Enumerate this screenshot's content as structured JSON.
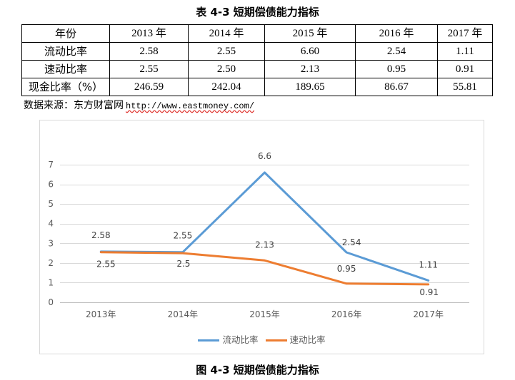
{
  "table": {
    "caption": "表 4-3 短期偿债能力指标",
    "headers": [
      "年份",
      "2013 年",
      "2014 年",
      "2015 年",
      "2016 年",
      "2017 年"
    ],
    "rows": [
      {
        "label": "流动比率",
        "values": [
          "2.58",
          "2.55",
          "6.60",
          "2.54",
          "1.11"
        ]
      },
      {
        "label": "速动比率",
        "values": [
          "2.55",
          "2.50",
          "2.13",
          "0.95",
          "0.91"
        ]
      },
      {
        "label": "现金比率（%）",
        "values": [
          "246.59",
          "242.04",
          "189.65",
          "86.67",
          "55.81"
        ]
      }
    ]
  },
  "source": {
    "label": "数据来源：东方财富网",
    "url": "http://www.eastmoney.com/"
  },
  "chart_data": {
    "type": "line",
    "title": "",
    "xlabel": "",
    "ylabel": "",
    "categories": [
      "2013年",
      "2014年",
      "2015年",
      "2016年",
      "2017年"
    ],
    "series": [
      {
        "name": "流动比率",
        "values": [
          2.58,
          2.55,
          6.6,
          2.54,
          1.11
        ],
        "color": "#5B9BD5"
      },
      {
        "name": "速动比率",
        "values": [
          2.55,
          2.5,
          2.13,
          0.95,
          0.91
        ],
        "color": "#ED7D31"
      }
    ],
    "y_ticks": [
      0,
      1,
      2,
      3,
      4,
      5,
      6,
      7
    ],
    "ylim": [
      0,
      7
    ],
    "grid": true,
    "data_labels": true,
    "legend": "bottom"
  },
  "figure_caption": "图 4-3 短期偿债能力指标"
}
